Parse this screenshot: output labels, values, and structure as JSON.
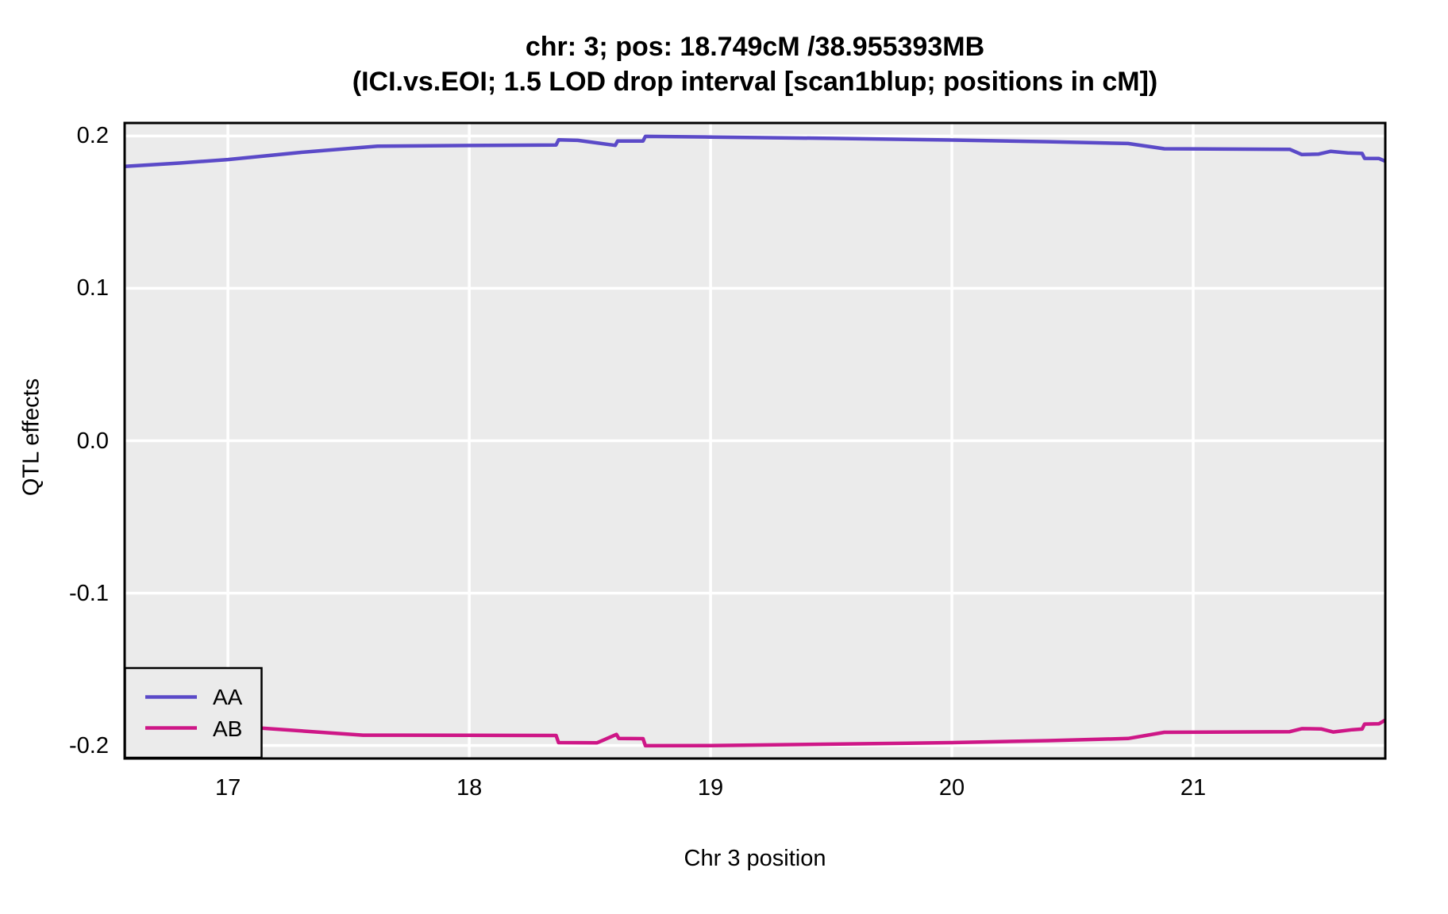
{
  "title": {
    "line1": "chr: 3; pos: 18.749cM /38.955393MB",
    "line2": "(ICI.vs.EOI; 1.5 LOD drop interval [scan1blup; positions in cM])"
  },
  "colors": {
    "aa_line": "#5B4AC8",
    "ab_line": "#CE1787",
    "panel_background": "#EBEBEB",
    "gridline": "#FFFFFF",
    "frame": "#000000"
  },
  "chart_data": {
    "type": "line",
    "title": "chr: 3; pos: 18.749cM /38.955393MB",
    "subtitle": "(ICI.vs.EOI; 1.5 LOD drop interval [scan1blup; positions in cM])",
    "xlabel": "Chr 3 position",
    "ylabel": "QTL effects",
    "xlim": [
      16.572,
      21.796
    ],
    "ylim": [
      -0.2085,
      0.2085
    ],
    "xticks": [
      17,
      18,
      19,
      20,
      21
    ],
    "xtick_labels": [
      "17",
      "18",
      "19",
      "20",
      "21"
    ],
    "yticks": [
      0.2,
      0.1,
      0.0,
      -0.1,
      -0.2
    ],
    "ytick_labels": [
      "0.2",
      "0.1",
      "0.0",
      "-0.1",
      "-0.2"
    ],
    "grid": true,
    "legend_position": "bottom-left",
    "series": [
      {
        "name": "AA",
        "color": "#5B4AC8",
        "points": [
          [
            16.572,
            0.18
          ],
          [
            16.8,
            0.1822
          ],
          [
            17.0,
            0.1845
          ],
          [
            17.3,
            0.1892
          ],
          [
            17.62,
            0.1933
          ],
          [
            18.0,
            0.1937
          ],
          [
            18.36,
            0.1941
          ],
          [
            18.37,
            0.1974
          ],
          [
            18.45,
            0.1971
          ],
          [
            18.605,
            0.1938
          ],
          [
            18.615,
            0.1967
          ],
          [
            18.72,
            0.1967
          ],
          [
            18.73,
            0.1997
          ],
          [
            19.0,
            0.1993
          ],
          [
            19.5,
            0.1984
          ],
          [
            20.0,
            0.1973
          ],
          [
            20.4,
            0.1962
          ],
          [
            20.73,
            0.195
          ],
          [
            20.88,
            0.1916
          ],
          [
            21.4,
            0.1912
          ],
          [
            21.45,
            0.1878
          ],
          [
            21.52,
            0.1881
          ],
          [
            21.57,
            0.1899
          ],
          [
            21.64,
            0.1888
          ],
          [
            21.7,
            0.1885
          ],
          [
            21.71,
            0.1853
          ],
          [
            21.77,
            0.1852
          ],
          [
            21.796,
            0.1834
          ]
        ]
      },
      {
        "name": "AB",
        "color": "#CE1787",
        "points": [
          [
            16.572,
            -0.183
          ],
          [
            17.14,
            -0.1886
          ],
          [
            17.56,
            -0.1932
          ],
          [
            18.0,
            -0.1933
          ],
          [
            18.36,
            -0.1934
          ],
          [
            18.37,
            -0.1981
          ],
          [
            18.53,
            -0.1982
          ],
          [
            18.61,
            -0.1927
          ],
          [
            18.62,
            -0.1954
          ],
          [
            18.72,
            -0.1955
          ],
          [
            18.73,
            -0.2001
          ],
          [
            19.0,
            -0.2
          ],
          [
            19.5,
            -0.1991
          ],
          [
            20.0,
            -0.1981
          ],
          [
            20.4,
            -0.1968
          ],
          [
            20.73,
            -0.1954
          ],
          [
            20.88,
            -0.1913
          ],
          [
            21.4,
            -0.1909
          ],
          [
            21.45,
            -0.1889
          ],
          [
            21.53,
            -0.1891
          ],
          [
            21.58,
            -0.1911
          ],
          [
            21.66,
            -0.1896
          ],
          [
            21.7,
            -0.1892
          ],
          [
            21.71,
            -0.1859
          ],
          [
            21.77,
            -0.1857
          ],
          [
            21.796,
            -0.1833
          ]
        ]
      }
    ]
  }
}
